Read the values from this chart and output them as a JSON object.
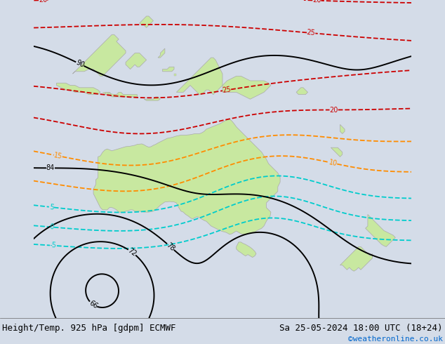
{
  "title_left": "Height/Temp. 925 hPa [gdpm] ECMWF",
  "title_right": "Sa 25-05-2024 18:00 UTC (18+24)",
  "watermark": "©weatheronline.co.uk",
  "watermark_color": "#0066cc",
  "bg_color": "#d4dce8",
  "land_color": "#c8e8a0",
  "ocean_color": "#c8d8f0",
  "title_fontsize": 9,
  "watermark_fontsize": 8,
  "fig_width": 6.34,
  "fig_height": 4.9,
  "dpi": 100,
  "map_extent": [
    100,
    182,
    -57,
    12
  ]
}
